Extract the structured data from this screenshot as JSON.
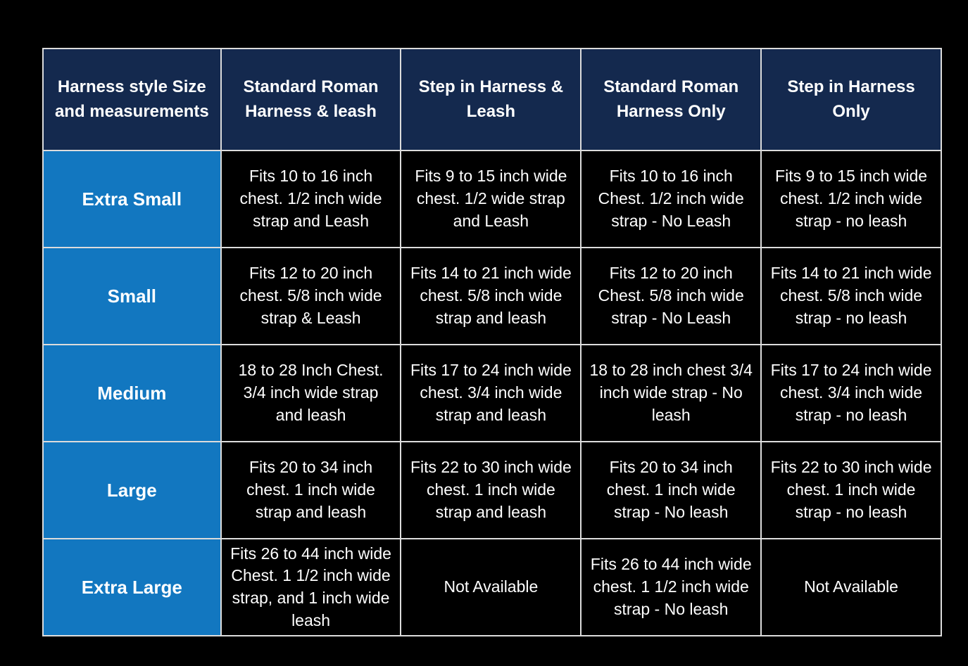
{
  "colors": {
    "page_bg": "#000000",
    "header_bg": "#14294e",
    "size_column_bg": "#1277c0",
    "cell_bg": "#000000",
    "border": "#dcdcdc",
    "text": "#ffffff"
  },
  "chart_data": {
    "type": "table",
    "columns": [
      "Harness style Size and measurements",
      "Standard Roman Harness & leash",
      "Step in Harness & Leash",
      "Standard Roman Harness Only",
      "Step in Harness Only"
    ],
    "rows": [
      [
        "Extra Small",
        "Fits 10 to 16 inch chest. 1/2 inch wide strap and Leash",
        "Fits 9 to 15 inch wide chest. 1/2 wide strap and Leash",
        "Fits 10 to 16 inch Chest. 1/2 inch wide strap - No Leash",
        "Fits 9 to 15 inch wide chest. 1/2 inch wide strap - no leash"
      ],
      [
        "Small",
        "Fits 12 to 20 inch chest. 5/8 inch wide strap & Leash",
        "Fits 14 to 21 inch wide chest. 5/8 inch wide strap and leash",
        "Fits 12 to 20 inch Chest. 5/8 inch wide strap - No Leash",
        "Fits 14 to 21 inch wide chest. 5/8 inch wide strap - no leash"
      ],
      [
        "Medium",
        "18 to 28 Inch Chest. 3/4 inch wide strap and leash",
        "Fits 17 to 24 inch wide chest. 3/4 inch wide strap and leash",
        "18 to 28 inch chest 3/4 inch wide strap - No leash",
        "Fits 17 to 24 inch wide chest. 3/4 inch wide strap - no leash"
      ],
      [
        "Large",
        "Fits 20 to 34 inch chest. 1 inch wide strap and leash",
        "Fits 22 to 30 inch wide chest. 1 inch wide strap and leash",
        "Fits 20 to 34 inch chest. 1 inch wide strap - No leash",
        "Fits 22 to 30 inch wide chest. 1 inch wide strap - no leash"
      ],
      [
        "Extra Large",
        "Fits 26 to 44 inch wide Chest. 1 1/2 inch wide strap, and 1 inch wide leash",
        "Not Available",
        "Fits 26 to 44 inch wide chest. 1 1/2 inch wide strap - No leash",
        "Not Available"
      ]
    ]
  }
}
